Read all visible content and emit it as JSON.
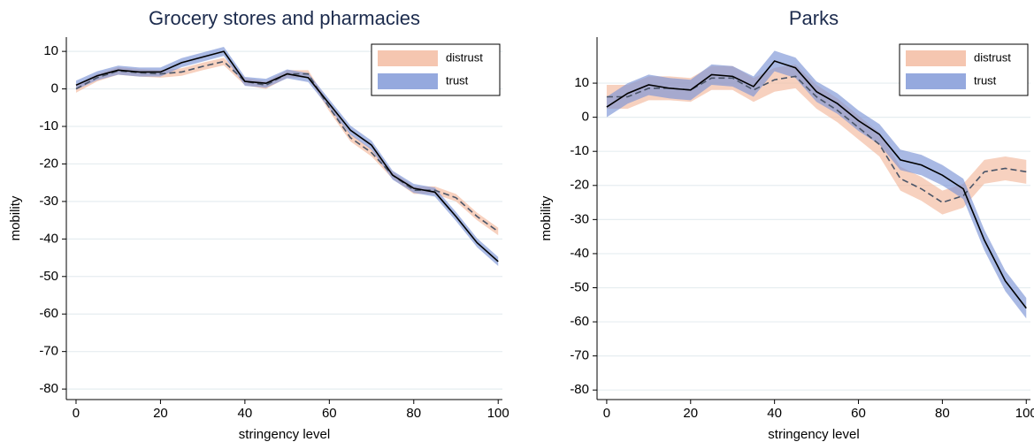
{
  "chart_data": [
    {
      "type": "line",
      "title": "Grocery stores and pharmacies",
      "xlabel": "stringency level",
      "ylabel": "mobility",
      "x": [
        0,
        5,
        10,
        15,
        20,
        25,
        30,
        35,
        40,
        45,
        50,
        55,
        60,
        65,
        70,
        75,
        80,
        85,
        90,
        95,
        100
      ],
      "series": [
        {
          "name": "distrust",
          "color": "#f2b89c",
          "line_color": "#4a5568",
          "line_style": "dashed",
          "values": [
            0,
            3,
            4.8,
            4.3,
            4,
            4.5,
            6,
            7.3,
            2,
            1,
            4,
            4,
            -5,
            -13,
            -17,
            -23,
            -27,
            -27,
            -29,
            -34,
            -38
          ],
          "lower": [
            -1,
            2,
            3.8,
            3.3,
            3,
            3.5,
            5,
            6.3,
            1,
            0,
            3,
            3,
            -6,
            -14,
            -18,
            -24,
            -28,
            -28,
            -30,
            -35,
            -39
          ],
          "upper": [
            1,
            4,
            5.8,
            5.3,
            5,
            5.5,
            7,
            8.3,
            3,
            2,
            5,
            5,
            -4,
            -12,
            -16,
            -22,
            -26,
            -26,
            -28,
            -33,
            -37
          ]
        },
        {
          "name": "trust",
          "color": "#7b93d6",
          "line_color": "#000000",
          "line_style": "solid",
          "values": [
            1,
            3.5,
            5,
            4.5,
            4.5,
            7,
            8.5,
            10,
            2,
            1.5,
            4,
            3,
            -4,
            -11,
            -15,
            -23,
            -26.5,
            -27.5,
            -34,
            -41,
            -46
          ],
          "lower": [
            -0.2,
            2.3,
            3.8,
            3.3,
            3.3,
            5.8,
            7.3,
            8.8,
            0.8,
            0.3,
            2.8,
            1.8,
            -5.2,
            -12.2,
            -16.2,
            -24.2,
            -27.7,
            -28.7,
            -35.2,
            -42.2,
            -47.2
          ],
          "upper": [
            2.2,
            4.7,
            6.2,
            5.7,
            5.7,
            8.2,
            9.7,
            11.2,
            3.2,
            2.7,
            5.2,
            4.2,
            -2.8,
            -9.8,
            -13.8,
            -21.8,
            -25.3,
            -26.3,
            -32.8,
            -39.8,
            -44.8
          ]
        }
      ],
      "xlim": [
        -2.3,
        101
      ],
      "xticks": [
        0,
        20,
        40,
        60,
        80,
        100
      ],
      "ylim": [
        -82.8,
        13.8
      ],
      "yticks": [
        -80,
        -70,
        -60,
        -50,
        -40,
        -30,
        -20,
        -10,
        0,
        10
      ],
      "grid": true,
      "legend": "upper right"
    },
    {
      "type": "line",
      "title": "Parks",
      "xlabel": "stringency level",
      "ylabel": "mobility",
      "x": [
        0,
        5,
        10,
        15,
        20,
        25,
        30,
        35,
        40,
        45,
        50,
        55,
        60,
        65,
        70,
        75,
        80,
        85,
        90,
        95,
        100
      ],
      "series": [
        {
          "name": "distrust",
          "color": "#f2b89c",
          "line_color": "#4a5568",
          "line_style": "dashed",
          "values": [
            6,
            6,
            8.5,
            8.5,
            8,
            11.5,
            11.5,
            8,
            11,
            12,
            6,
            2,
            -3,
            -8,
            -18,
            -21,
            -25,
            -23,
            -16,
            -15,
            -16
          ],
          "lower": [
            2.5,
            2.5,
            5,
            5,
            4.5,
            8,
            8,
            4.5,
            7.5,
            8.5,
            2.5,
            -1.5,
            -6.5,
            -11.5,
            -21.5,
            -24.5,
            -28.5,
            -26.5,
            -19.5,
            -18.5,
            -19.5
          ],
          "upper": [
            9.5,
            9.5,
            12,
            12,
            11.5,
            15,
            15,
            11.5,
            14.5,
            15.5,
            9.5,
            5.5,
            0.5,
            -4.5,
            -14.5,
            -17.5,
            -21.5,
            -19.5,
            -12.5,
            -11.5,
            -12.5
          ]
        },
        {
          "name": "trust",
          "color": "#7b93d6",
          "line_color": "#000000",
          "line_style": "solid",
          "values": [
            3,
            7,
            9.5,
            8.5,
            8,
            12.5,
            12,
            9,
            16.5,
            14.5,
            7.5,
            4,
            -1,
            -5,
            -12.5,
            -14,
            -17,
            -21,
            -36,
            -48,
            -56
          ],
          "lower": [
            0,
            4,
            6.5,
            5.5,
            5,
            9.5,
            9,
            6,
            13.5,
            11.5,
            4.5,
            1,
            -4,
            -8,
            -15.5,
            -17,
            -20,
            -24,
            -39,
            -51,
            -59
          ],
          "upper": [
            6,
            10,
            12.5,
            11.5,
            11,
            15.5,
            15,
            12,
            19.5,
            17.5,
            10.5,
            7,
            2,
            -2,
            -9.5,
            -11,
            -14,
            -18,
            -33,
            -45,
            -53
          ]
        }
      ],
      "xlim": [
        -2.3,
        101
      ],
      "xticks": [
        0,
        20,
        40,
        60,
        80,
        100
      ],
      "ylim": [
        -82.8,
        23.5
      ],
      "yticks": [
        -80,
        -70,
        -60,
        -50,
        -40,
        -30,
        -20,
        -10,
        0,
        10
      ],
      "grid": true,
      "legend": "upper right"
    }
  ]
}
